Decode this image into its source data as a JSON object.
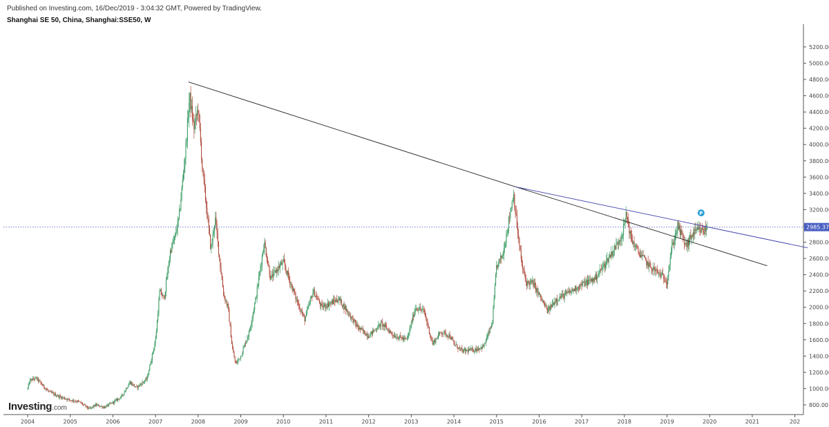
{
  "header": {
    "published": "Published on Investing.com, 16/Dec/2019 - 3:04:32 GMT, Powered by TradingView.",
    "symbol": "Shanghai SE 50, China, Shanghai:SSE50, W"
  },
  "logo": {
    "main": "Investing",
    "suffix": ".com"
  },
  "colors": {
    "up": "#3a9b63",
    "down": "#b04a3a",
    "trend_major": "#222222",
    "trend_minor": "#3b3ba8",
    "price_line": "#5c6bc0",
    "price_label_bg": "#4a5fc1",
    "marker": "#2a9fd6"
  },
  "icons": {
    "marker": "p-marker-icon"
  },
  "chart_data": {
    "type": "candlestick",
    "title": "Shanghai SE 50, China, Shanghai:SSE50, W",
    "interval": "W",
    "ylim": [
      600,
      5300
    ],
    "y_ticks": [
      "800.00",
      "1000.00",
      "1200.00",
      "1400.00",
      "1600.00",
      "1800.00",
      "2000.00",
      "2200.00",
      "2400.00",
      "2600.00",
      "2800.00",
      "3000.00",
      "3200.00",
      "3400.00",
      "3600.00",
      "3800.00",
      "4000.00",
      "4200.00",
      "4400.00",
      "4600.00",
      "4800.00",
      "5000.00",
      "5200.00"
    ],
    "x_ticks": [
      "2004",
      "2005",
      "2006",
      "2007",
      "2008",
      "2009",
      "2010",
      "2011",
      "2012",
      "2013",
      "2014",
      "2015",
      "2016",
      "2017",
      "2018",
      "2019",
      "2020",
      "2021",
      "202"
    ],
    "last_price": 2985.37,
    "last_price_label": "2985.37",
    "grid": false,
    "price_path": [
      [
        2004.0,
        1000
      ],
      [
        2004.05,
        1100
      ],
      [
        2004.2,
        1130
      ],
      [
        2004.35,
        1040
      ],
      [
        2004.5,
        960
      ],
      [
        2004.75,
        900
      ],
      [
        2005.0,
        860
      ],
      [
        2005.2,
        840
      ],
      [
        2005.45,
        750
      ],
      [
        2005.6,
        800
      ],
      [
        2005.8,
        770
      ],
      [
        2006.0,
        830
      ],
      [
        2006.2,
        900
      ],
      [
        2006.4,
        1080
      ],
      [
        2006.55,
        1010
      ],
      [
        2006.8,
        1120
      ],
      [
        2007.0,
        1600
      ],
      [
        2007.1,
        2200
      ],
      [
        2007.2,
        2100
      ],
      [
        2007.35,
        2700
      ],
      [
        2007.45,
        2850
      ],
      [
        2007.55,
        3100
      ],
      [
        2007.7,
        3900
      ],
      [
        2007.8,
        4600
      ],
      [
        2007.9,
        4200
      ],
      [
        2008.0,
        4450
      ],
      [
        2008.1,
        3700
      ],
      [
        2008.2,
        3200
      ],
      [
        2008.3,
        2700
      ],
      [
        2008.4,
        3100
      ],
      [
        2008.5,
        2600
      ],
      [
        2008.6,
        2150
      ],
      [
        2008.7,
        2000
      ],
      [
        2008.8,
        1500
      ],
      [
        2008.88,
        1300
      ],
      [
        2009.0,
        1400
      ],
      [
        2009.2,
        1700
      ],
      [
        2009.35,
        2100
      ],
      [
        2009.55,
        2800
      ],
      [
        2009.7,
        2350
      ],
      [
        2009.9,
        2500
      ],
      [
        2010.0,
        2550
      ],
      [
        2010.3,
        2100
      ],
      [
        2010.5,
        1850
      ],
      [
        2010.7,
        2200
      ],
      [
        2010.9,
        2000
      ],
      [
        2011.1,
        2050
      ],
      [
        2011.3,
        2100
      ],
      [
        2011.5,
        1950
      ],
      [
        2011.75,
        1750
      ],
      [
        2012.0,
        1650
      ],
      [
        2012.3,
        1800
      ],
      [
        2012.6,
        1650
      ],
      [
        2012.9,
        1600
      ],
      [
        2013.1,
        2000
      ],
      [
        2013.3,
        1950
      ],
      [
        2013.5,
        1550
      ],
      [
        2013.7,
        1700
      ],
      [
        2013.9,
        1650
      ],
      [
        2014.0,
        1550
      ],
      [
        2014.2,
        1460
      ],
      [
        2014.5,
        1480
      ],
      [
        2014.7,
        1520
      ],
      [
        2014.9,
        1800
      ],
      [
        2015.0,
        2500
      ],
      [
        2015.15,
        2650
      ],
      [
        2015.3,
        3100
      ],
      [
        2015.4,
        3400
      ],
      [
        2015.5,
        2900
      ],
      [
        2015.6,
        2500
      ],
      [
        2015.7,
        2300
      ],
      [
        2015.85,
        2300
      ],
      [
        2016.0,
        2150
      ],
      [
        2016.2,
        1950
      ],
      [
        2016.4,
        2100
      ],
      [
        2016.7,
        2180
      ],
      [
        2017.0,
        2280
      ],
      [
        2017.3,
        2350
      ],
      [
        2017.5,
        2500
      ],
      [
        2017.8,
        2750
      ],
      [
        2017.95,
        2900
      ],
      [
        2018.05,
        3150
      ],
      [
        2018.15,
        2850
      ],
      [
        2018.3,
        2700
      ],
      [
        2018.6,
        2500
      ],
      [
        2018.85,
        2400
      ],
      [
        2019.0,
        2320
      ],
      [
        2019.1,
        2700
      ],
      [
        2019.25,
        3000
      ],
      [
        2019.45,
        2750
      ],
      [
        2019.6,
        2900
      ],
      [
        2019.75,
        2950
      ],
      [
        2019.85,
        2930
      ],
      [
        2019.96,
        2985
      ]
    ],
    "trendlines": [
      {
        "from": [
          2007.77,
          4770
        ],
        "to": [
          2015.45,
          3480
        ],
        "color": "major"
      },
      {
        "from": [
          2015.45,
          3480
        ],
        "to": [
          2021.35,
          2510
        ],
        "color": "major"
      },
      {
        "from": [
          2015.45,
          3480
        ],
        "to": [
          2022.3,
          2730
        ],
        "color": "minor"
      }
    ],
    "marker": {
      "x": 2019.8,
      "y": 3160,
      "label": "P"
    }
  }
}
